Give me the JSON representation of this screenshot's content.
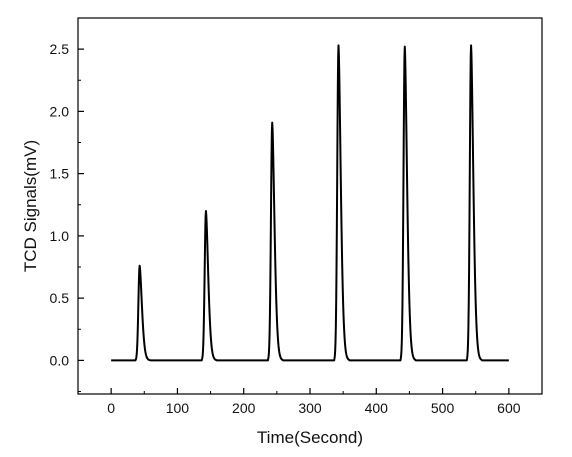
{
  "chart_data": {
    "type": "line",
    "title": "",
    "xlabel": "Time(Second)",
    "ylabel": "TCD Signals(mV)",
    "xlim": [
      -50,
      650
    ],
    "ylim": [
      -0.27,
      2.75
    ],
    "xticks": [
      0,
      100,
      200,
      300,
      400,
      500,
      600
    ],
    "xtick_labels": [
      "0",
      "100",
      "200",
      "300",
      "400",
      "500",
      "600"
    ],
    "yticks": [
      0.0,
      0.5,
      1.0,
      1.5,
      2.0,
      2.5
    ],
    "ytick_labels": [
      "0.0",
      "0.5",
      "1.0",
      "1.5",
      "2.0",
      "2.5"
    ],
    "grid": false,
    "legend": "none",
    "line_color": "#000000",
    "series": [
      {
        "name": "",
        "peaks": [
          {
            "time": 43,
            "height": 0.76
          },
          {
            "time": 143,
            "height": 1.2
          },
          {
            "time": 243,
            "height": 1.91
          },
          {
            "time": 343,
            "height": 2.53
          },
          {
            "time": 443,
            "height": 2.52
          },
          {
            "time": 543,
            "height": 2.53
          }
        ],
        "x_range": [
          0,
          600
        ],
        "baseline": 0.0
      }
    ]
  }
}
